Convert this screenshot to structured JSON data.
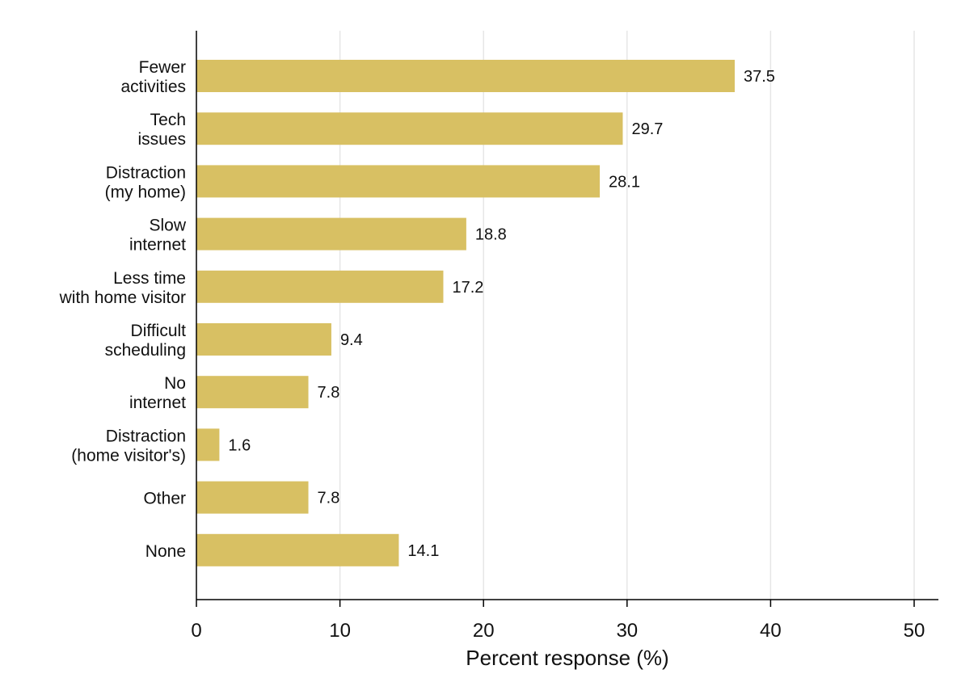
{
  "chart_data": {
    "type": "bar",
    "orientation": "horizontal",
    "categories": [
      [
        "Fewer",
        "activities"
      ],
      [
        "Tech",
        "issues"
      ],
      [
        "Distraction",
        "(my home)"
      ],
      [
        "Slow",
        "internet"
      ],
      [
        "Less time",
        "with home visitor"
      ],
      [
        "Difficult",
        "scheduling"
      ],
      [
        "No",
        "internet"
      ],
      [
        "Distraction",
        "(home visitor's)"
      ],
      [
        "Other"
      ],
      [
        "None"
      ]
    ],
    "values": [
      37.5,
      29.7,
      28.1,
      18.8,
      17.2,
      9.4,
      7.8,
      1.6,
      7.8,
      14.1
    ],
    "value_labels": [
      "37.5",
      "29.7",
      "28.1",
      "18.8",
      "17.2",
      "9.4",
      "7.8",
      "1.6",
      "7.8",
      "14.1"
    ],
    "xlabel": "Percent response (%)",
    "ylabel": "",
    "xlim": [
      0,
      50
    ],
    "xticks": [
      0,
      10,
      20,
      30,
      40,
      50
    ],
    "xtick_labels": [
      "0",
      "10",
      "20",
      "30",
      "40",
      "50"
    ],
    "grid": "vertical",
    "bar_color": "#d8c063",
    "grid_color": "#e6e6e6",
    "axis_color": "#000000"
  }
}
